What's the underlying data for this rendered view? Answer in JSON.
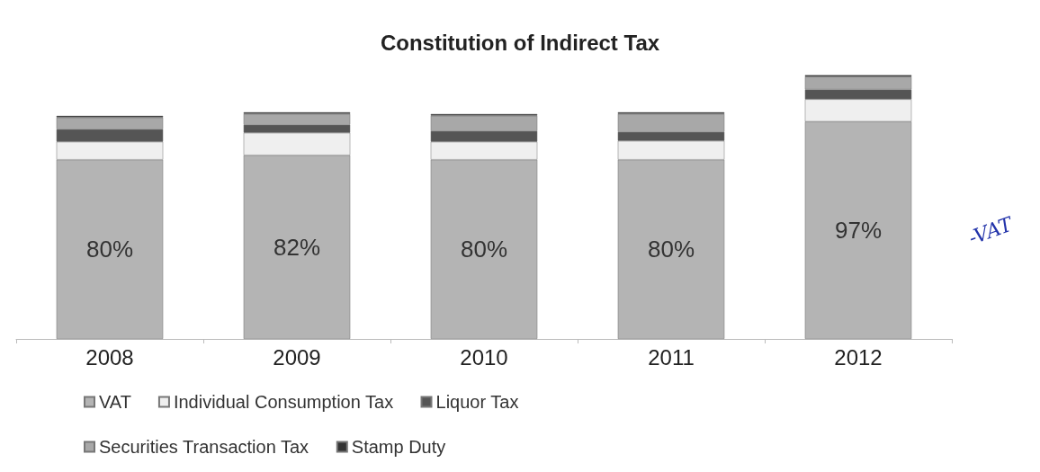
{
  "chart_data": {
    "type": "bar",
    "title": "Constitution of Indirect Tax",
    "categories": [
      "2008",
      "2009",
      "2010",
      "2011",
      "2012"
    ],
    "stacked": true,
    "legend": "bottom",
    "series": [
      {
        "name": "VAT",
        "color": "#b4b4b4",
        "values": [
          80,
          82,
          80,
          80,
          97
        ],
        "value_labels": [
          "80%",
          "82%",
          "80%",
          "80%",
          "97%"
        ]
      },
      {
        "name": "Individual Consumption Tax",
        "color": "#efefef",
        "values": [
          8,
          10,
          8,
          8.4,
          10
        ]
      },
      {
        "name": "Liquor Tax",
        "color": "#555555",
        "values": [
          5.6,
          3.6,
          4.8,
          4,
          4.4
        ]
      },
      {
        "name": "Securities Transaction Tax",
        "color": "#a8a8a8",
        "values": [
          5.2,
          4.8,
          6.8,
          8,
          5.6
        ]
      },
      {
        "name": "Stamp Duty",
        "color": "#333333",
        "values": [
          0.8,
          0.8,
          0.8,
          0.8,
          0.8
        ]
      }
    ],
    "annotations": [
      "-VAT"
    ]
  }
}
